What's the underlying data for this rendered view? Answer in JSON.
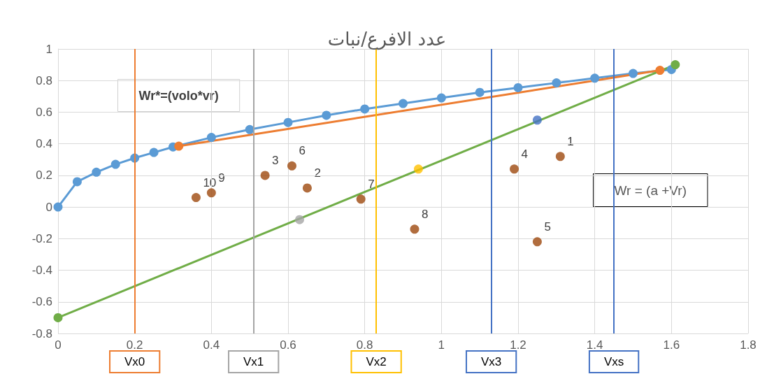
{
  "chart_data": {
    "type": "scatter",
    "title": "عدد الافرع/نبات",
    "xlim": [
      0,
      1.8
    ],
    "xticks": [
      0,
      0.2,
      0.4,
      0.6,
      0.8,
      1,
      1.2,
      1.4,
      1.6,
      1.8
    ],
    "ylim": [
      -0.8,
      1
    ],
    "yticks": [
      -0.8,
      -0.6,
      -0.4,
      -0.2,
      0,
      0.2,
      0.4,
      0.6,
      0.8,
      1
    ],
    "grid": true,
    "marker": "circle",
    "series": [
      {
        "type": "line",
        "color": "#5b9bd5",
        "x": [
          0,
          0.05,
          0.1,
          0.15,
          0.2,
          0.25,
          0.3,
          0.4,
          0.5,
          0.6,
          0.7,
          0.8,
          0.9,
          1,
          1.1,
          1.2,
          1.3,
          1.4,
          1.5,
          1.6
        ],
        "values": [
          0,
          0.16,
          0.22,
          0.27,
          0.31,
          0.345,
          0.38,
          0.44,
          0.49,
          0.535,
          0.58,
          0.62,
          0.655,
          0.69,
          0.725,
          0.755,
          0.785,
          0.815,
          0.845,
          0.87
        ]
      },
      {
        "type": "line",
        "color": "#ed7d31",
        "x": [
          0.315,
          1.57
        ],
        "values": [
          0.385,
          0.865
        ]
      },
      {
        "type": "line",
        "color": "#70ad47",
        "x": [
          0,
          1.61
        ],
        "values": [
          -0.7,
          0.9
        ]
      },
      {
        "type": "scatter",
        "color": "#a5a5a5",
        "x": [
          0.63
        ],
        "values": [
          -0.08
        ]
      },
      {
        "type": "scatter",
        "color": "#ffc000",
        "x": [
          0.94
        ],
        "values": [
          0.24
        ]
      },
      {
        "type": "scatter",
        "color": "#4472c4",
        "x": [
          1.25
        ],
        "values": [
          0.55
        ]
      },
      {
        "type": "scatter",
        "color": "#9e480e",
        "x": [
          1.31,
          0.65,
          0.54,
          1.19,
          1.25,
          0.61,
          0.79,
          0.93,
          0.4,
          0.36
        ],
        "values": [
          0.32,
          0.12,
          0.2,
          0.24,
          -0.22,
          0.26,
          0.05,
          -0.14,
          0.09,
          0.06
        ]
      }
    ],
    "ref_lines": [
      {
        "axis": "x",
        "value": 0.2,
        "label": "Vx0",
        "color": "#ed7d31"
      },
      {
        "axis": "x",
        "value": 0.51,
        "label": "Vx1",
        "color": "#a5a5a5"
      },
      {
        "axis": "x",
        "value": 0.83,
        "label": "Vx2",
        "color": "#ffc000"
      },
      {
        "axis": "x",
        "value": 1.13,
        "label": "Vx3",
        "color": "#4472c4"
      },
      {
        "axis": "x",
        "value": 1.45,
        "label": "Vxs",
        "color": "#4472c4"
      }
    ],
    "annotations": [
      "Wr*=(volo*vr)",
      "Wr = (a +Vr)",
      {
        "text": "1",
        "x": 1.31,
        "y": 0.32
      },
      {
        "text": "2",
        "x": 0.65,
        "y": 0.12
      },
      {
        "text": "3",
        "x": 0.54,
        "y": 0.2
      },
      {
        "text": "4",
        "x": 1.19,
        "y": 0.24
      },
      {
        "text": "5",
        "x": 1.25,
        "y": -0.22
      },
      {
        "text": "6",
        "x": 0.61,
        "y": 0.26
      },
      {
        "text": "7",
        "x": 0.79,
        "y": 0.05
      },
      {
        "text": "8",
        "x": 0.93,
        "y": -0.14
      },
      {
        "text": "9",
        "x": 0.4,
        "y": 0.09
      },
      {
        "text": "10",
        "x": 0.36,
        "y": 0.06
      }
    ]
  }
}
